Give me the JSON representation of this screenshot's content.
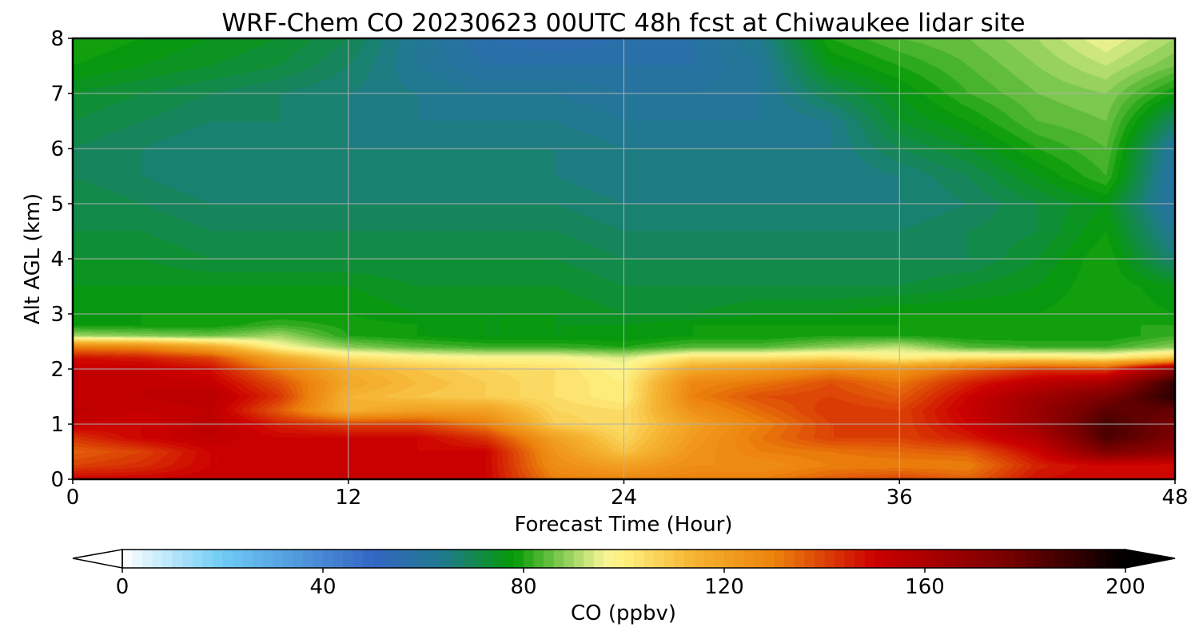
{
  "chart_data": {
    "type": "heatmap",
    "title": "WRF-Chem CO  20230623 00UTC 48h fcst at Chiwaukee lidar site",
    "xlabel": "Forecast Time (Hour)",
    "ylabel": "Alt AGL (km)",
    "xlim": [
      0,
      48
    ],
    "ylim": [
      0,
      8
    ],
    "xticks": [
      "0",
      "12",
      "24",
      "36",
      "48"
    ],
    "yticks": [
      "0",
      "1",
      "2",
      "3",
      "4",
      "5",
      "6",
      "7",
      "8"
    ],
    "grid": true,
    "colorbar": {
      "label": "CO  (ppbv)",
      "range": [
        0,
        200
      ],
      "ticks": [
        "0",
        "40",
        "80",
        "120",
        "160",
        "200"
      ],
      "extend": "both",
      "under_color": "#ffffff",
      "over_color": "#000000",
      "stops": [
        {
          "value": 0,
          "color": "#ffffff"
        },
        {
          "value": 20,
          "color": "#6ecbf5"
        },
        {
          "value": 50,
          "color": "#3366c4"
        },
        {
          "value": 64,
          "color": "#1f7a8c"
        },
        {
          "value": 78,
          "color": "#059a05"
        },
        {
          "value": 96,
          "color": "#f5f596"
        },
        {
          "value": 100,
          "color": "#fff080"
        },
        {
          "value": 114,
          "color": "#f5b330"
        },
        {
          "value": 130,
          "color": "#ec820c"
        },
        {
          "value": 150,
          "color": "#cc0000"
        },
        {
          "value": 176,
          "color": "#7a0000"
        },
        {
          "value": 200,
          "color": "#000000"
        }
      ]
    },
    "field": {
      "hours": [
        0,
        3,
        6,
        9,
        12,
        15,
        18,
        21,
        24,
        27,
        30,
        33,
        36,
        39,
        42,
        45,
        48
      ],
      "alts": [
        0,
        0.25,
        0.5,
        0.75,
        1.0,
        1.25,
        1.5,
        1.75,
        2.0,
        2.2,
        2.4,
        2.6,
        2.8,
        3.0,
        3.5,
        4.0,
        4.5,
        5.0,
        5.5,
        6.0,
        6.5,
        7.0,
        7.5,
        8.0
      ],
      "values": [
        [
          150,
          150,
          152,
          150,
          152,
          150,
          150,
          130,
          128,
          130,
          130,
          136,
          140,
          135,
          148,
          150,
          148
        ],
        [
          140,
          143,
          150,
          150,
          152,
          150,
          150,
          126,
          120,
          126,
          126,
          130,
          130,
          130,
          145,
          150,
          148
        ],
        [
          135,
          140,
          150,
          150,
          150,
          150,
          150,
          124,
          110,
          124,
          130,
          132,
          134,
          136,
          150,
          175,
          168
        ],
        [
          142,
          150,
          154,
          150,
          150,
          150,
          142,
          120,
          106,
          122,
          132,
          140,
          140,
          146,
          158,
          185,
          175
        ],
        [
          152,
          150,
          156,
          145,
          140,
          140,
          130,
          108,
          104,
          120,
          130,
          140,
          140,
          150,
          165,
          186,
          176
        ],
        [
          155,
          152,
          154,
          136,
          115,
          120,
          120,
          106,
          104,
          125,
          134,
          142,
          140,
          152,
          166,
          182,
          180
        ],
        [
          152,
          154,
          156,
          142,
          114,
          110,
          108,
          104,
          100,
          130,
          138,
          140,
          136,
          150,
          164,
          175,
          192
        ],
        [
          152,
          154,
          152,
          138,
          118,
          112,
          108,
          104,
          100,
          128,
          132,
          138,
          132,
          145,
          155,
          162,
          190
        ],
        [
          152,
          152,
          148,
          130,
          115,
          110,
          106,
          104,
          98,
          118,
          122,
          128,
          124,
          134,
          142,
          140,
          170
        ],
        [
          148,
          146,
          140,
          118,
          104,
          100,
          98,
          98,
          94,
          104,
          104,
          106,
          100,
          104,
          104,
          102,
          110
        ],
        [
          130,
          128,
          118,
          98,
          88,
          84,
          82,
          82,
          80,
          84,
          84,
          88,
          92,
          84,
          82,
          82,
          88
        ],
        [
          90,
          88,
          86,
          90,
          80,
          78,
          76,
          76,
          76,
          78,
          78,
          80,
          80,
          78,
          78,
          78,
          82
        ],
        [
          78,
          78,
          78,
          82,
          79,
          78,
          76,
          76,
          76,
          78,
          78,
          78,
          78,
          78,
          78,
          80,
          80
        ],
        [
          76,
          78,
          78,
          78,
          78,
          76,
          76,
          76,
          74,
          74,
          76,
          76,
          78,
          78,
          78,
          80,
          78
        ],
        [
          76,
          76,
          76,
          76,
          76,
          74,
          74,
          74,
          72,
          72,
          72,
          72,
          72,
          74,
          76,
          80,
          76
        ],
        [
          74,
          74,
          72,
          72,
          72,
          72,
          72,
          72,
          70,
          70,
          70,
          70,
          70,
          70,
          74,
          80,
          66
        ],
        [
          72,
          72,
          70,
          70,
          70,
          70,
          70,
          70,
          68,
          68,
          68,
          68,
          68,
          70,
          72,
          78,
          62
        ],
        [
          72,
          70,
          68,
          68,
          68,
          68,
          68,
          68,
          66,
          66,
          66,
          66,
          66,
          68,
          72,
          76,
          58
        ],
        [
          70,
          68,
          66,
          66,
          66,
          66,
          66,
          66,
          64,
          64,
          64,
          64,
          66,
          70,
          76,
          82,
          58
        ],
        [
          70,
          68,
          66,
          66,
          66,
          66,
          66,
          66,
          64,
          64,
          64,
          64,
          70,
          74,
          80,
          84,
          60
        ],
        [
          72,
          70,
          68,
          68,
          66,
          64,
          64,
          64,
          62,
          62,
          62,
          64,
          74,
          78,
          84,
          86,
          68
        ],
        [
          74,
          72,
          70,
          68,
          66,
          64,
          62,
          62,
          60,
          60,
          62,
          70,
          76,
          82,
          86,
          88,
          78
        ],
        [
          78,
          76,
          74,
          72,
          68,
          62,
          58,
          58,
          58,
          58,
          62,
          76,
          80,
          84,
          88,
          92,
          86
        ],
        [
          80,
          78,
          76,
          74,
          70,
          62,
          56,
          54,
          56,
          58,
          64,
          80,
          84,
          86,
          90,
          96,
          90
        ]
      ]
    }
  }
}
